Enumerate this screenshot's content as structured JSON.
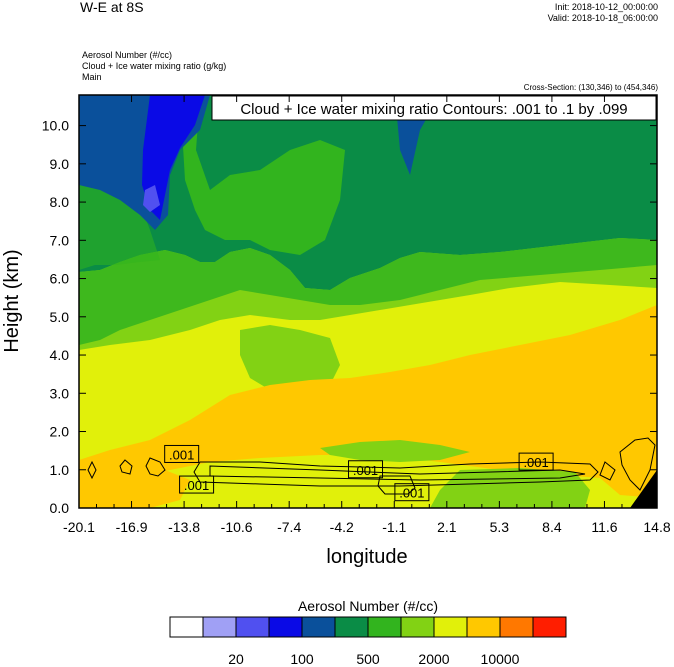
{
  "header": {
    "title": "W-E at 8S",
    "init": "Init: 2018-10-12_00:00:00",
    "valid": "Valid: 2018-10-18_06:00:00",
    "field1": "Aerosol Number   (#/cc)",
    "field2": "Cloud + Ice water mixing ratio   (g/kg)",
    "field3": "Main",
    "cross_section": "Cross-Section: (130,346) to (454,346)"
  },
  "chart_data": {
    "type": "heatmap",
    "title": "Cloud + Ice water mixing ratio Contours: .001 to .1 by .099",
    "xlabel": "longitude",
    "ylabel": "Height (km)",
    "x_ticks": [
      "-20.1",
      "-16.9",
      "-13.8",
      "-10.6",
      "-7.4",
      "-4.2",
      "-1.1",
      "2.1",
      "5.3",
      "8.4",
      "11.6",
      "14.8"
    ],
    "y_ticks": [
      "0.0",
      "1.0",
      "2.0",
      "3.0",
      "4.0",
      "5.0",
      "6.0",
      "7.0",
      "8.0",
      "9.0",
      "10.0"
    ],
    "xlim": [
      -20.1,
      14.8
    ],
    "ylim": [
      0,
      10.8
    ],
    "contour_labels": [
      {
        "text": ".001",
        "x": -13.9,
        "y": 1.4
      },
      {
        "text": ".001",
        "x": -13.0,
        "y": 0.6
      },
      {
        "text": ".001",
        "x": -2.8,
        "y": 1.0
      },
      {
        "text": ".001",
        "x": 0.0,
        "y": 0.4
      },
      {
        "text": ".001",
        "x": 7.5,
        "y": 1.2
      }
    ],
    "colorbar": {
      "label": "Aerosol Number  (#/cc)",
      "colors": [
        "#ffffff",
        "#a0a0f5",
        "#5050f0",
        "#0a0ae6",
        "#0a509b",
        "#0a8c46",
        "#32b41e",
        "#82d214",
        "#e1f00a",
        "#ffc800",
        "#ff7800",
        "#ff1e00"
      ],
      "tick_labels": [
        "20",
        "100",
        "500",
        "2000",
        "10000"
      ]
    }
  }
}
